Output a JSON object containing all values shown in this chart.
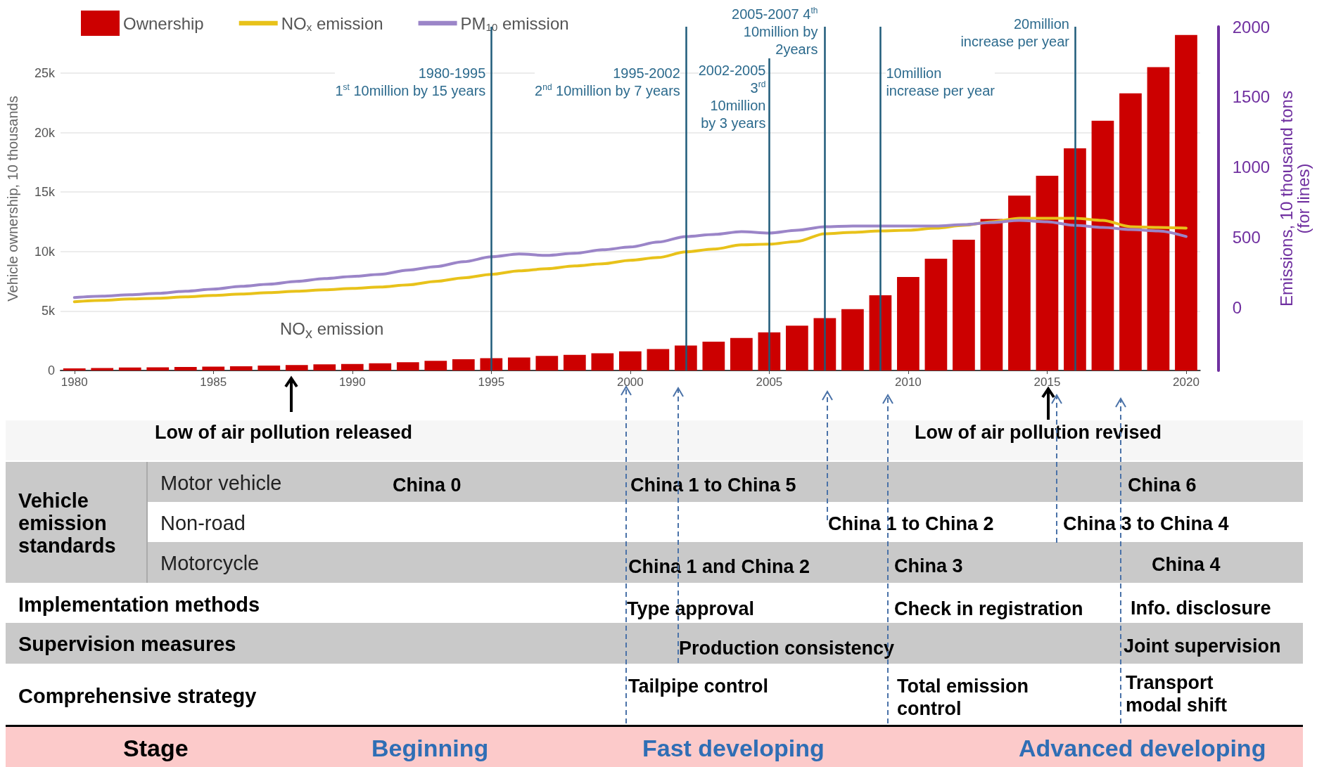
{
  "chart_data": {
    "type": "bar",
    "x": [
      1980,
      1981,
      1982,
      1983,
      1984,
      1985,
      1986,
      1987,
      1988,
      1989,
      1990,
      1991,
      1992,
      1993,
      1994,
      1995,
      1996,
      1997,
      1998,
      1999,
      2000,
      2001,
      2002,
      2003,
      2004,
      2005,
      2006,
      2007,
      2008,
      2009,
      2010,
      2011,
      2012,
      2013,
      2014,
      2015,
      2016,
      2017,
      2018,
      2019,
      2020
    ],
    "series": [
      {
        "name": "Ownership",
        "color": "#cc0000",
        "values": [
          180,
          210,
          250,
          260,
          290,
          320,
          360,
          410,
          460,
          510,
          550,
          610,
          690,
          820,
          940,
          1040,
          1100,
          1220,
          1320,
          1450,
          1610,
          1800,
          2100,
          2420,
          2740,
          3200,
          3770,
          4410,
          5160,
          6330,
          7860,
          9390,
          11000,
          12740,
          14700,
          16370,
          18680,
          21000,
          23300,
          25500,
          28200
        ]
      },
      {
        "name": "NO$_{x}$ emission",
        "type": "line",
        "axis": "y2",
        "color": "#e8c21a",
        "values": [
          40,
          50,
          60,
          65,
          75,
          85,
          95,
          105,
          115,
          125,
          135,
          145,
          160,
          185,
          210,
          235,
          260,
          275,
          295,
          310,
          335,
          355,
          395,
          415,
          445,
          450,
          470,
          525,
          535,
          545,
          550,
          565,
          585,
          610,
          635,
          635,
          635,
          620,
          575,
          570,
          565
        ]
      },
      {
        "name": "PM$_{10}$ emission",
        "type": "line",
        "axis": "y2",
        "color": "#9b85c8",
        "values": [
          70,
          80,
          90,
          100,
          115,
          130,
          150,
          165,
          185,
          205,
          220,
          235,
          265,
          290,
          325,
          360,
          380,
          370,
          385,
          410,
          430,
          465,
          505,
          520,
          540,
          530,
          550,
          575,
          580,
          580,
          580,
          580,
          590,
          605,
          620,
          610,
          585,
          570,
          555,
          545,
          505
        ]
      }
    ],
    "xlim": [
      1979.5,
      2020.5
    ],
    "xticks": [
      1980,
      1985,
      1990,
      1995,
      2000,
      2005,
      2010,
      2015,
      2020
    ],
    "ylim": [
      0,
      28900
    ],
    "yticks": [
      0,
      {
        "value": 5000,
        "label": "5k"
      },
      {
        "value": 10000,
        "label": "10k"
      },
      {
        "value": 15000,
        "label": "15k"
      },
      {
        "value": 20000,
        "label": "20k"
      },
      {
        "value": 25000,
        "label": "25k"
      }
    ],
    "y2lim": [
      -450,
      2000
    ],
    "y2ticks": [
      0,
      500,
      1000,
      1500,
      2000
    ],
    "ylabel": "Vehicle ownership, 10 thousands",
    "y2label": "Emissions, 10 thousand tons\n(for lines)",
    "ref_lines": [
      {
        "axis": "x",
        "value": 1995,
        "label": "1980-1995\n1$^{st}$ 10million by 15 years",
        "color": "#1f5b7a"
      },
      {
        "axis": "x",
        "value": 2002,
        "label": "1995-2002\n2$^{nd}$ 10million by 7 years",
        "color": "#1f5b7a"
      },
      {
        "axis": "x",
        "value": 2005,
        "label": "2002-2005\n3$^{rd}$\n10million\nby 3 years",
        "color": "#1f5b7a"
      },
      {
        "axis": "x",
        "value": 2007,
        "label": "2005-2007 4$^{th}$\n10million by\n2years",
        "color": "#1f5b7a"
      },
      {
        "axis": "x",
        "value": 2009,
        "label": "10million\nincrease per year",
        "color": "#1f5b7a"
      },
      {
        "axis": "x",
        "value": 2016,
        "label": "20million\nincrease per year",
        "color": "#1f5b7a"
      }
    ],
    "annotations": [
      "NO$_{x}$ emission",
      "Low of air pollution released",
      "Low of air pollution revised",
      "Vehicle emission standards",
      "Motor vehicle",
      "Non-road",
      "Motorcycle",
      "Implementation methods",
      "Supervision measures",
      "Comprehensive strategy",
      "China 0",
      "China 1 to China 5",
      "China 6",
      "China 1 to China 2",
      "China 3 to China 4",
      "China 1 and China 2",
      "China 3",
      "China 4",
      "Type approval",
      "Check in registration",
      "Info. disclosure",
      "Production consistency",
      "Joint supervision",
      "Tailpipe control",
      "Total emission control",
      "Transport modal shift",
      "Stage",
      "Beginning",
      "Fast developing",
      "Advanced developing"
    ],
    "grid": "y",
    "legend": "top left",
    "marker": "none",
    "line_style": "solid"
  }
}
